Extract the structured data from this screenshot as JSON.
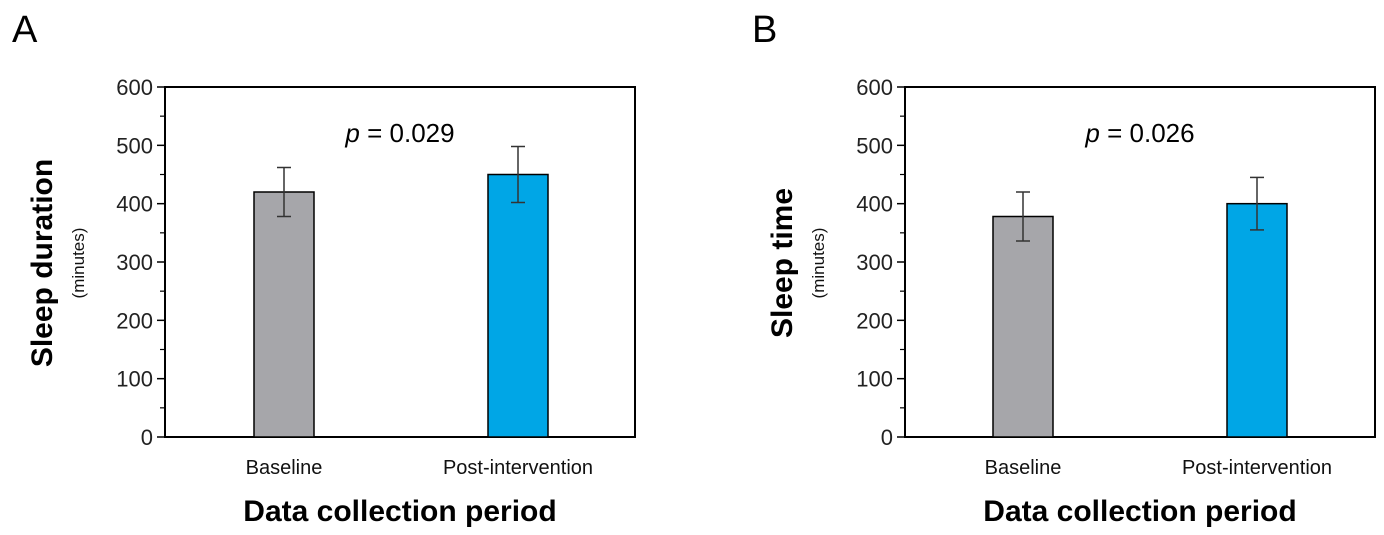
{
  "chart_data": [
    {
      "panel": "A",
      "type": "bar",
      "categories": [
        "Baseline",
        "Post-intervention"
      ],
      "values": [
        420,
        450
      ],
      "errors": [
        42,
        48
      ],
      "colors": [
        "#a6a6aa",
        "#00a6e6"
      ],
      "ylim": [
        0,
        600
      ],
      "yticks": [
        "0",
        "100",
        "200",
        "300",
        "400",
        "500",
        "600"
      ],
      "ylabel": "Sleep duration",
      "yunit": "(minutes)",
      "xlabel": "Data collection period",
      "p_prefix": "p",
      "p_suffix": " = 0.029"
    },
    {
      "panel": "B",
      "type": "bar",
      "categories": [
        "Baseline",
        "Post-intervention"
      ],
      "values": [
        378,
        400
      ],
      "errors": [
        42,
        45
      ],
      "colors": [
        "#a6a6aa",
        "#00a6e6"
      ],
      "ylim": [
        0,
        600
      ],
      "yticks": [
        "0",
        "100",
        "200",
        "300",
        "400",
        "500",
        "600"
      ],
      "ylabel": "Sleep time",
      "yunit": "(minutes)",
      "xlabel": "Data collection period",
      "p_prefix": "p",
      "p_suffix": " = 0.026"
    }
  ]
}
